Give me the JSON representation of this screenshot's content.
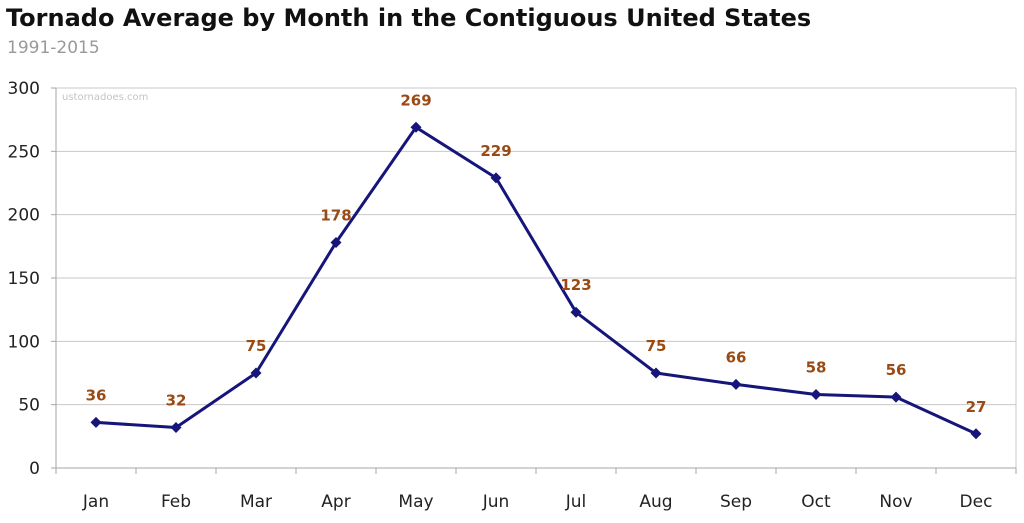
{
  "chart_data": {
    "type": "line",
    "title": "Tornado Average by Month in the Contiguous United States",
    "subtitle": "1991-2015",
    "watermark": "ustornadoes.com",
    "xlabel": "",
    "ylabel": "",
    "categories": [
      "Jan",
      "Feb",
      "Mar",
      "Apr",
      "May",
      "Jun",
      "Jul",
      "Aug",
      "Sep",
      "Oct",
      "Nov",
      "Dec"
    ],
    "series": [
      {
        "values": [
          36,
          32,
          75,
          178,
          269,
          229,
          123,
          75,
          66,
          58,
          56,
          27
        ]
      }
    ],
    "ylim": [
      0,
      300
    ],
    "yticks": [
      0,
      50,
      100,
      150,
      200,
      250,
      300
    ],
    "grid": true,
    "legend": "none",
    "colors": {
      "line": "#15157a",
      "marker": "#15157a",
      "data_label": "#9a4a12",
      "grid": "#c8c8c8",
      "axis": "#a6a6a6"
    }
  }
}
